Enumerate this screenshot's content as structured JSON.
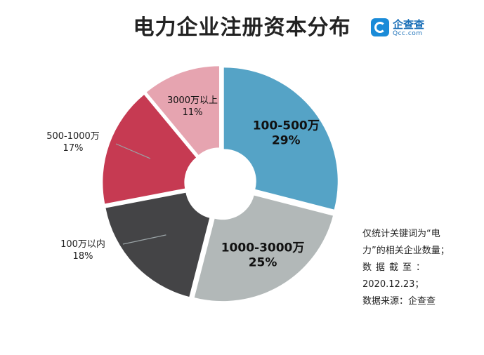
{
  "title": "电力企业注册资本分布",
  "logo": {
    "name": "企查查",
    "sub": "Qcc.com"
  },
  "note": {
    "line1": "仅统计关键词为“电",
    "line2": "力”的相关企业数量；",
    "line3": "数据截至：",
    "line4": "2020.12.23；",
    "line5": "数据来源：企查查"
  },
  "colors": {
    "blue": "#55a3c6",
    "gray": "#b2b8b8",
    "dark": "#444446",
    "red": "#c63a52",
    "pink": "#e6a4b0"
  },
  "chart_data": {
    "type": "pie",
    "style": "donut, exploded slices",
    "slices": [
      {
        "label": "100-500万",
        "value": 29,
        "pct_text": "29%",
        "color": "#55a3c6",
        "label_inside": true
      },
      {
        "label": "1000-3000万",
        "value": 25,
        "pct_text": "25%",
        "color": "#b2b8b8",
        "label_inside": true
      },
      {
        "label": "100万以内",
        "value": 18,
        "pct_text": "18%",
        "color": "#444446",
        "label_inside": false
      },
      {
        "label": "500-1000万",
        "value": 17,
        "pct_text": "17%",
        "color": "#c63a52",
        "label_inside": false
      },
      {
        "label": "3000万以上",
        "value": 11,
        "pct_text": "11%",
        "color": "#e6a4b0",
        "label_inside": true
      }
    ]
  }
}
